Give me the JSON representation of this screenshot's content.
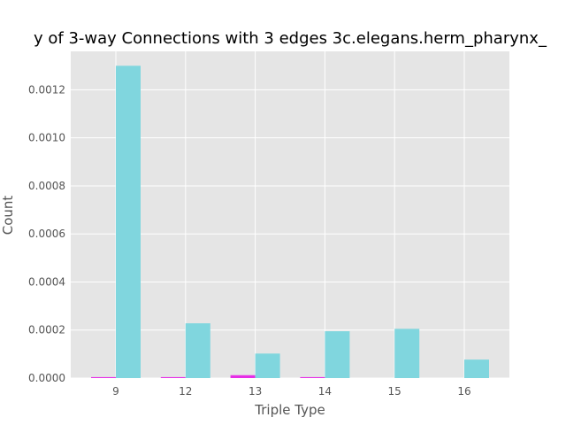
{
  "chart_data": {
    "type": "bar",
    "title": "y of 3-way Connections with 3 edges 3c.elegans.herm_pharynx_",
    "xlabel": "Triple Type",
    "ylabel": "Count",
    "categories": [
      "9",
      "12",
      "13",
      "14",
      "15",
      "16"
    ],
    "series": [
      {
        "color": "#e62ee6",
        "values": [
          4e-06,
          4e-06,
          1.2e-05,
          4e-06,
          0,
          0
        ]
      },
      {
        "color": "#80d6de",
        "values": [
          0.0013,
          0.000228,
          0.000102,
          0.000195,
          0.000205,
          7.7e-05
        ]
      }
    ],
    "ylim": [
      0,
      0.00136
    ],
    "yticks": [
      "0.0000",
      "0.0002",
      "0.0004",
      "0.0006",
      "0.0008",
      "0.0010",
      "0.0012"
    ],
    "ytick_values": [
      0,
      0.0002,
      0.0004,
      0.0006,
      0.0008,
      0.001,
      0.0012
    ],
    "grid": true,
    "style": {
      "background": "#e5e5e5",
      "grid_color": "#ffffff"
    }
  }
}
